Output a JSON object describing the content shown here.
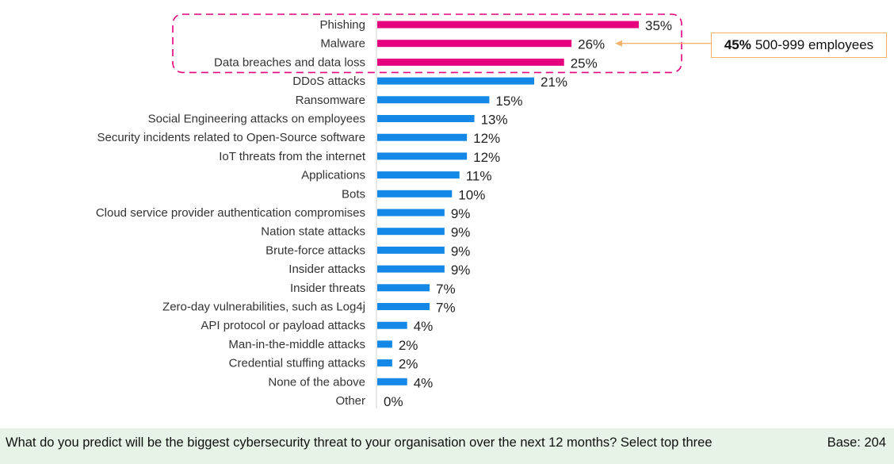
{
  "chart_data": {
    "type": "bar",
    "orientation": "horizontal",
    "categories": [
      "Phishing",
      "Malware",
      "Data breaches and data loss",
      "DDoS attacks",
      "Ransomware",
      "Social Engineering attacks on employees",
      "Security incidents related to Open-Source software",
      "IoT threats from the internet",
      "Applications",
      "Bots",
      "Cloud service provider authentication compromises",
      "Nation state attacks",
      "Brute-force attacks",
      "Insider attacks",
      "Insider threats",
      "Zero-day vulnerabilities, such as Log4j",
      "API protocol or payload attacks",
      "Man-in-the-middle attacks",
      "Credential stuffing attacks",
      "None of the above",
      "Other"
    ],
    "values": [
      35,
      26,
      25,
      21,
      15,
      13,
      12,
      12,
      11,
      10,
      9,
      9,
      9,
      9,
      7,
      7,
      4,
      2,
      2,
      4,
      0
    ],
    "value_labels": [
      "35%",
      "26%",
      "25%",
      "21%",
      "15%",
      "13%",
      "12%",
      "12%",
      "11%",
      "10%",
      "9%",
      "9%",
      "9%",
      "9%",
      "7%",
      "7%",
      "4%",
      "2%",
      "2%",
      "4%",
      "0%"
    ],
    "highlight_count": 3,
    "xlim": [
      0,
      35
    ],
    "grid": false,
    "legend": "none",
    "colors": {
      "highlight": "#e5007d",
      "default": "#1488e6",
      "dash": "#e5007d",
      "callout": "#f2b26b"
    }
  },
  "callout": {
    "value": "45%",
    "text": "500-999 employees"
  },
  "footer": {
    "question": "What do you predict will be the biggest cybersecurity threat to your organisation over the next 12 months? Select top three",
    "base": "Base: 204"
  }
}
